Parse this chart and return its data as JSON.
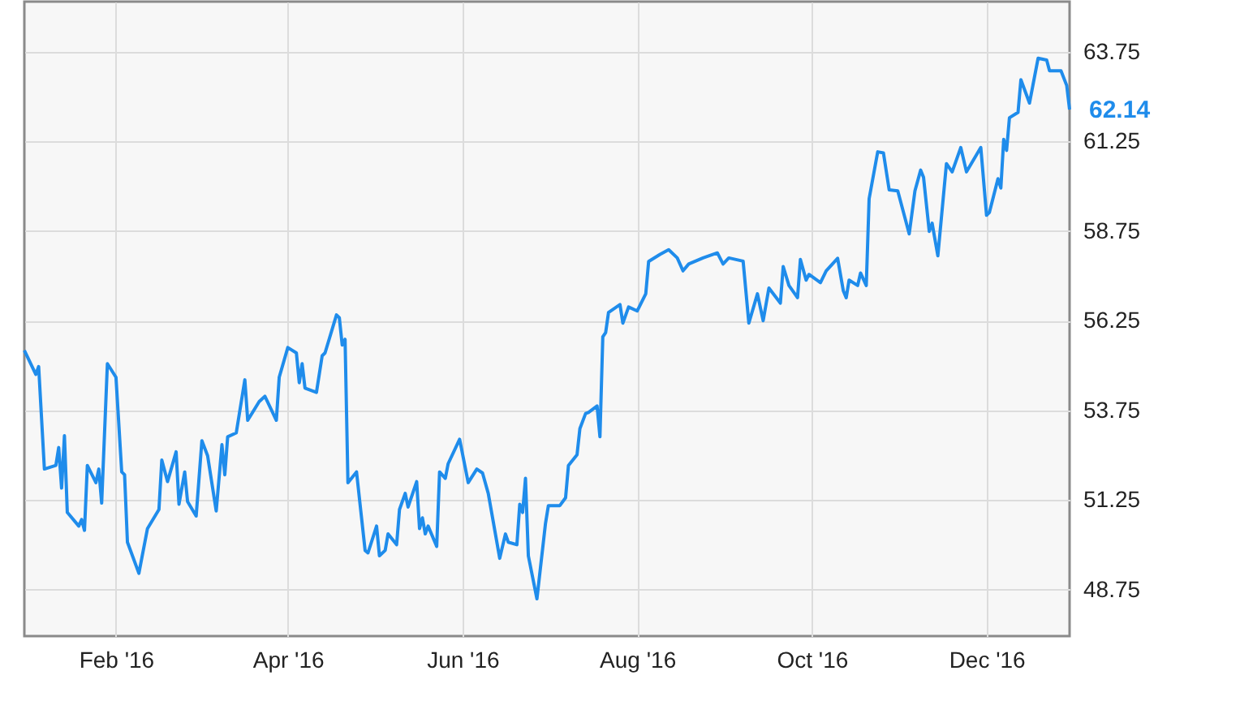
{
  "chart_data": {
    "type": "line",
    "x": [
      "2015-12-31",
      "2016-01-04",
      "2016-01-05",
      "2016-01-07",
      "2016-01-11",
      "2016-01-12",
      "2016-01-13",
      "2016-01-14",
      "2016-01-15",
      "2016-01-19",
      "2016-01-20",
      "2016-01-21",
      "2016-01-22",
      "2016-01-25",
      "2016-01-26",
      "2016-01-27",
      "2016-01-29",
      "2016-02-01",
      "2016-02-03",
      "2016-02-04",
      "2016-02-05",
      "2016-02-09",
      "2016-02-10",
      "2016-02-12",
      "2016-02-16",
      "2016-02-17",
      "2016-02-19",
      "2016-02-22",
      "2016-02-23",
      "2016-02-25",
      "2016-02-26",
      "2016-02-29",
      "2016-03-02",
      "2016-03-04",
      "2016-03-07",
      "2016-03-09",
      "2016-03-10",
      "2016-03-11",
      "2016-03-14",
      "2016-03-17",
      "2016-03-18",
      "2016-03-22",
      "2016-03-24",
      "2016-03-28",
      "2016-03-29",
      "2016-04-01",
      "2016-04-04",
      "2016-04-05",
      "2016-04-06",
      "2016-04-07",
      "2016-04-11",
      "2016-04-13",
      "2016-04-14",
      "2016-04-18",
      "2016-04-19",
      "2016-04-20",
      "2016-04-21",
      "2016-04-22",
      "2016-04-25",
      "2016-04-28",
      "2016-04-29",
      "2016-05-02",
      "2016-05-03",
      "2016-05-05",
      "2016-05-06",
      "2016-05-09",
      "2016-05-10",
      "2016-05-12",
      "2016-05-13",
      "2016-05-16",
      "2016-05-17",
      "2016-05-18",
      "2016-05-19",
      "2016-05-20",
      "2016-05-23",
      "2016-05-24",
      "2016-05-26",
      "2016-05-27",
      "2016-05-31",
      "2016-06-03",
      "2016-06-06",
      "2016-06-08",
      "2016-06-10",
      "2016-06-14",
      "2016-06-16",
      "2016-06-17",
      "2016-06-20",
      "2016-06-21",
      "2016-06-22",
      "2016-06-23",
      "2016-06-24",
      "2016-06-27",
      "2016-06-30",
      "2016-07-01",
      "2016-07-05",
      "2016-07-07",
      "2016-07-08",
      "2016-07-11",
      "2016-07-12",
      "2016-07-14",
      "2016-07-15",
      "2016-07-18",
      "2016-07-19",
      "2016-07-20",
      "2016-07-21",
      "2016-07-22",
      "2016-07-26",
      "2016-07-27",
      "2016-07-29",
      "2016-08-01",
      "2016-08-04",
      "2016-08-05",
      "2016-08-09",
      "2016-08-12",
      "2016-08-15",
      "2016-08-17",
      "2016-08-19",
      "2016-08-24",
      "2016-08-29",
      "2016-08-31",
      "2016-09-02",
      "2016-09-07",
      "2016-09-09",
      "2016-09-12",
      "2016-09-14",
      "2016-09-16",
      "2016-09-20",
      "2016-09-21",
      "2016-09-23",
      "2016-09-26",
      "2016-09-27",
      "2016-09-29",
      "2016-09-30",
      "2016-10-04",
      "2016-10-06",
      "2016-10-10",
      "2016-10-12",
      "2016-10-13",
      "2016-10-14",
      "2016-10-17",
      "2016-10-18",
      "2016-10-20",
      "2016-10-21",
      "2016-10-24",
      "2016-10-26",
      "2016-10-28",
      "2016-10-31",
      "2016-11-02",
      "2016-11-04",
      "2016-11-06",
      "2016-11-08",
      "2016-11-09",
      "2016-11-11",
      "2016-11-12",
      "2016-11-14",
      "2016-11-17",
      "2016-11-19",
      "2016-11-22",
      "2016-11-24",
      "2016-11-29",
      "2016-12-01",
      "2016-12-02",
      "2016-12-05",
      "2016-12-06",
      "2016-12-07",
      "2016-12-08",
      "2016-12-09",
      "2016-12-12",
      "2016-12-13",
      "2016-12-16",
      "2016-12-19",
      "2016-12-22",
      "2016-12-23",
      "2016-12-27",
      "2016-12-29",
      "2016-12-30"
    ],
    "series": [
      {
        "color": "#1f8ceb",
        "values": [
          55.42,
          54.75,
          54.97,
          52.11,
          52.21,
          52.71,
          51.58,
          53.04,
          50.9,
          50.52,
          50.7,
          50.4,
          52.21,
          51.73,
          52.11,
          51.16,
          55.05,
          54.67,
          52.03,
          51.95,
          50.07,
          49.2,
          49.62,
          50.45,
          50.98,
          52.36,
          51.76,
          52.59,
          51.13,
          52.03,
          51.2,
          50.8,
          52.9,
          52.48,
          50.94,
          52.79,
          51.95,
          53.01,
          53.12,
          54.6,
          53.47,
          53.99,
          54.14,
          53.47,
          54.67,
          55.5,
          55.35,
          54.52,
          55.05,
          54.37,
          54.25,
          55.27,
          55.35,
          56.41,
          56.33,
          55.57,
          55.73,
          51.73,
          52.03,
          49.84,
          49.77,
          50.52,
          49.69,
          49.84,
          50.3,
          50.0,
          50.98,
          51.43,
          51.05,
          51.76,
          50.45,
          50.75,
          50.3,
          50.52,
          49.95,
          52.03,
          51.85,
          52.26,
          52.94,
          51.73,
          52.11,
          52.0,
          51.43,
          49.62,
          50.3,
          50.07,
          50.0,
          51.13,
          50.9,
          51.85,
          49.69,
          48.49,
          50.6,
          51.09,
          51.09,
          51.31,
          52.21,
          52.51,
          53.24,
          53.66,
          53.69,
          53.87,
          53.01,
          55.8,
          55.92,
          56.48,
          56.7,
          56.18,
          56.63,
          56.52,
          57.0,
          57.9,
          58.1,
          58.23,
          58.0,
          57.64,
          57.83,
          58.0,
          58.14,
          57.83,
          58.0,
          57.91,
          56.18,
          57.0,
          56.25,
          57.16,
          56.74,
          57.76,
          57.23,
          56.89,
          57.96,
          57.38,
          57.54,
          57.31,
          57.64,
          57.99,
          57.08,
          56.89,
          57.38,
          57.23,
          57.58,
          57.23,
          59.65,
          60.96,
          60.93,
          59.9,
          59.87,
          59.27,
          58.67,
          59.87,
          60.45,
          60.25,
          58.74,
          58.97,
          58.06,
          60.63,
          60.4,
          61.08,
          60.4,
          61.08,
          59.19,
          59.27,
          60.21,
          59.95,
          61.31,
          61.0,
          61.91,
          62.06,
          62.97,
          62.32,
          63.57,
          63.52,
          63.22,
          63.22,
          62.81,
          62.14
        ]
      }
    ],
    "xlim": [
      "2015-12-31",
      "2016-12-30"
    ],
    "xticks": [
      {
        "value": "2016-02-01",
        "label": "Feb '16"
      },
      {
        "value": "2016-04-01",
        "label": "Apr '16"
      },
      {
        "value": "2016-06-01",
        "label": "Jun '16"
      },
      {
        "value": "2016-08-01",
        "label": "Aug '16"
      },
      {
        "value": "2016-10-01",
        "label": "Oct '16"
      },
      {
        "value": "2016-12-01",
        "label": "Dec '16"
      }
    ],
    "ylim": [
      47.45,
      65.15
    ],
    "yticks": [
      48.75,
      51.25,
      53.75,
      56.25,
      58.75,
      61.25,
      63.75
    ],
    "annotations": [
      {
        "text": "62.14",
        "x": "2016-12-30",
        "y": 62.14
      }
    ],
    "grid": true,
    "marker": "none",
    "line_style": "solid"
  }
}
